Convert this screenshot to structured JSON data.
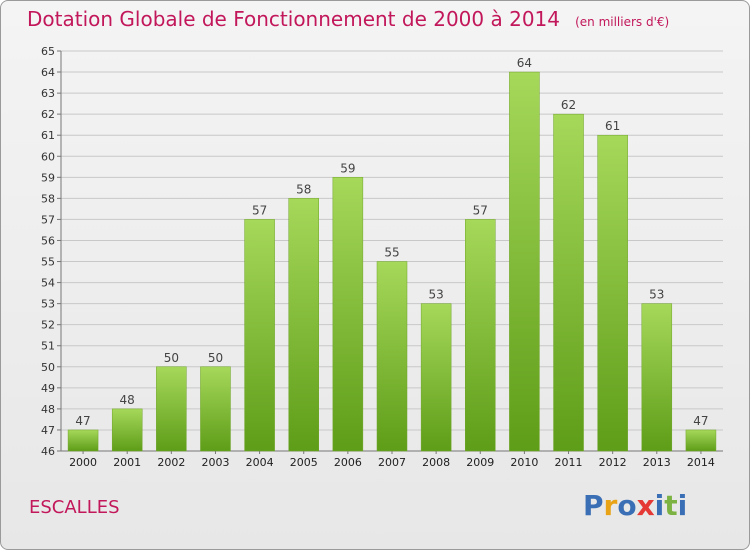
{
  "header": {
    "title": "Dotation Globale de Fonctionnement de 2000 à 2014",
    "subtitle": "(en milliers d'€)"
  },
  "commune": "ESCALLES",
  "logo": {
    "text": "Proxiti",
    "letter_colors": [
      "#3a6fb5",
      "#e8a317",
      "#3a6fb5",
      "#e53935",
      "#3a6fb5",
      "#7cb342",
      "#3a6fb5"
    ]
  },
  "colors": {
    "bar_top": "#a6d85a",
    "bar_bottom": "#5e9d18",
    "accent": "#c2185b",
    "grid": "#c8c8c8"
  },
  "chart_data": {
    "type": "bar",
    "title": "Dotation Globale de Fonctionnement de 2000 à 2014",
    "subtitle": "(en milliers d'€)",
    "categories": [
      "2000",
      "2001",
      "2002",
      "2003",
      "2004",
      "2005",
      "2006",
      "2007",
      "2008",
      "2009",
      "2010",
      "2011",
      "2012",
      "2013",
      "2014"
    ],
    "values": [
      47,
      48,
      50,
      50,
      57,
      58,
      59,
      55,
      53,
      57,
      64,
      62,
      61,
      53,
      47
    ],
    "ylim": [
      46,
      65
    ],
    "yticks": [
      46,
      47,
      48,
      49,
      50,
      51,
      52,
      53,
      54,
      55,
      56,
      57,
      58,
      59,
      60,
      61,
      62,
      63,
      64,
      65
    ],
    "grid": true,
    "legend": "none"
  }
}
